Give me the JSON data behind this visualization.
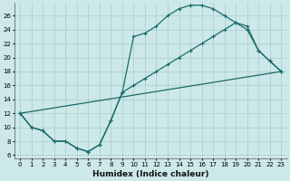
{
  "xlabel": "Humidex (Indice chaleur)",
  "background_color": "#cce8e8",
  "grid_color": "#aacccc",
  "line_color": "#1a6b6b",
  "xlim": [
    -0.5,
    23.5
  ],
  "ylim": [
    5.5,
    27.8
  ],
  "xticks": [
    0,
    1,
    2,
    3,
    4,
    5,
    6,
    7,
    8,
    9,
    10,
    11,
    12,
    13,
    14,
    15,
    16,
    17,
    18,
    19,
    20,
    21,
    22,
    23
  ],
  "yticks": [
    6,
    8,
    10,
    12,
    14,
    16,
    18,
    20,
    22,
    24,
    26
  ],
  "line1_x": [
    0,
    1,
    2,
    3,
    4,
    5,
    6,
    7,
    8,
    9,
    10,
    11,
    12,
    13,
    14,
    15,
    16,
    17,
    18,
    19,
    20,
    21,
    22,
    23
  ],
  "line1_y": [
    12,
    10,
    9.5,
    8,
    8,
    7,
    6.5,
    7.5,
    11,
    15,
    23,
    23.5,
    24.5,
    26,
    27,
    27.5,
    27.5,
    27,
    26,
    25,
    24.5,
    21,
    19.5,
    18
  ],
  "line2_x": [
    0,
    1,
    2,
    3,
    4,
    5,
    6,
    7,
    8,
    9,
    10,
    11,
    12,
    13,
    14,
    15,
    16,
    17,
    18,
    19,
    20,
    21,
    22,
    23
  ],
  "line2_y": [
    12,
    10,
    9.5,
    8,
    8,
    7,
    6.5,
    7.5,
    11,
    15,
    16,
    17,
    18,
    19,
    20,
    21,
    22,
    23,
    24,
    25,
    24,
    21,
    19.5,
    18
  ],
  "line3_x": [
    0,
    23
  ],
  "line3_y": [
    12,
    18
  ],
  "tick_fontsize": 5,
  "xlabel_fontsize": 6.5,
  "lw": 0.9,
  "ms": 2.5
}
